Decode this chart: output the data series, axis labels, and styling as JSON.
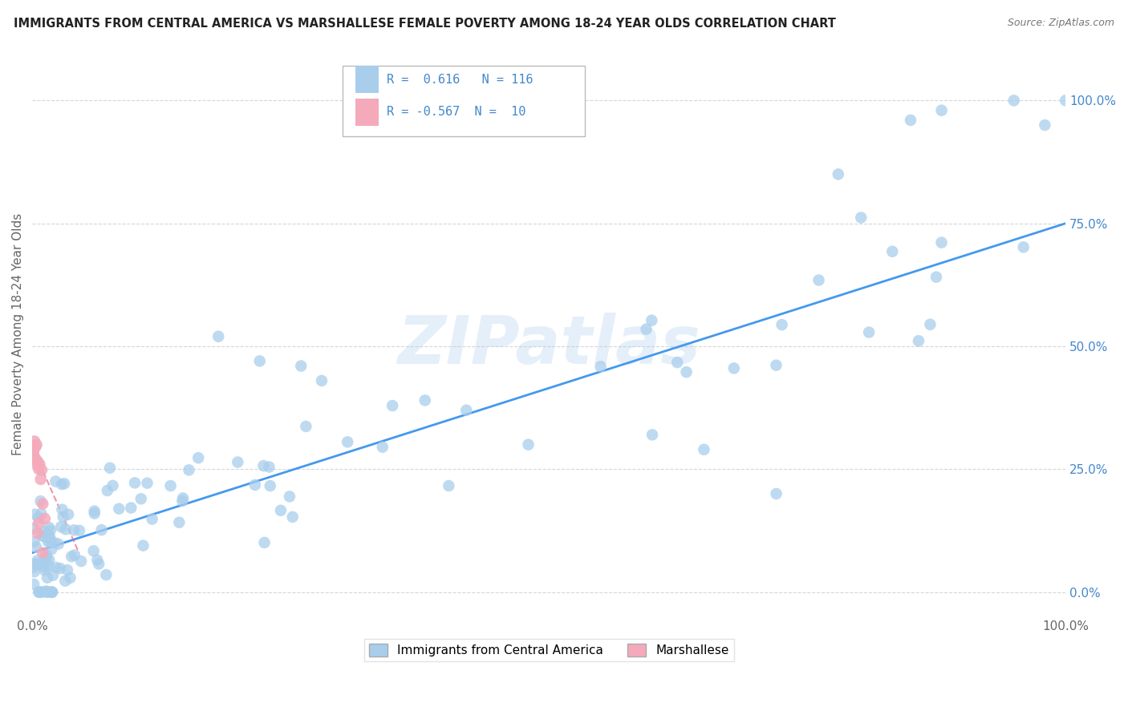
{
  "title": "IMMIGRANTS FROM CENTRAL AMERICA VS MARSHALLESE FEMALE POVERTY AMONG 18-24 YEAR OLDS CORRELATION CHART",
  "source": "Source: ZipAtlas.com",
  "ylabel": "Female Poverty Among 18-24 Year Olds",
  "xlim": [
    0,
    1.0
  ],
  "ylim": [
    -0.05,
    1.1
  ],
  "r_blue": 0.616,
  "n_blue": 116,
  "r_pink": -0.567,
  "n_pink": 10,
  "blue_color": "#A8CEEC",
  "pink_color": "#F4AABB",
  "line_blue_color": "#4499EE",
  "line_pink_color": "#EE6688",
  "background_color": "#FFFFFF",
  "grid_color": "#CCCCCC",
  "title_color": "#222222",
  "legend_text_color": "#4488CC",
  "axis_text_color": "#666666",
  "ytick_labels": [
    "0.0%",
    "25.0%",
    "50.0%",
    "75.0%",
    "100.0%"
  ],
  "ytick_values": [
    0.0,
    0.25,
    0.5,
    0.75,
    1.0
  ],
  "xtick_labels": [
    "0.0%",
    "100.0%"
  ],
  "xtick_values": [
    0.0,
    1.0
  ],
  "blue_line_x0": 0.0,
  "blue_line_y0": 0.08,
  "blue_line_x1": 1.0,
  "blue_line_y1": 0.75,
  "pink_line_x0": 0.0,
  "pink_line_y0": 0.295,
  "pink_line_x1": 0.045,
  "pink_line_y1": 0.08,
  "watermark_text": "ZIPatlas",
  "watermark_color": "#AACCEE",
  "legend_box_label1": "Immigrants from Central America",
  "legend_box_label2": "Marshallese"
}
